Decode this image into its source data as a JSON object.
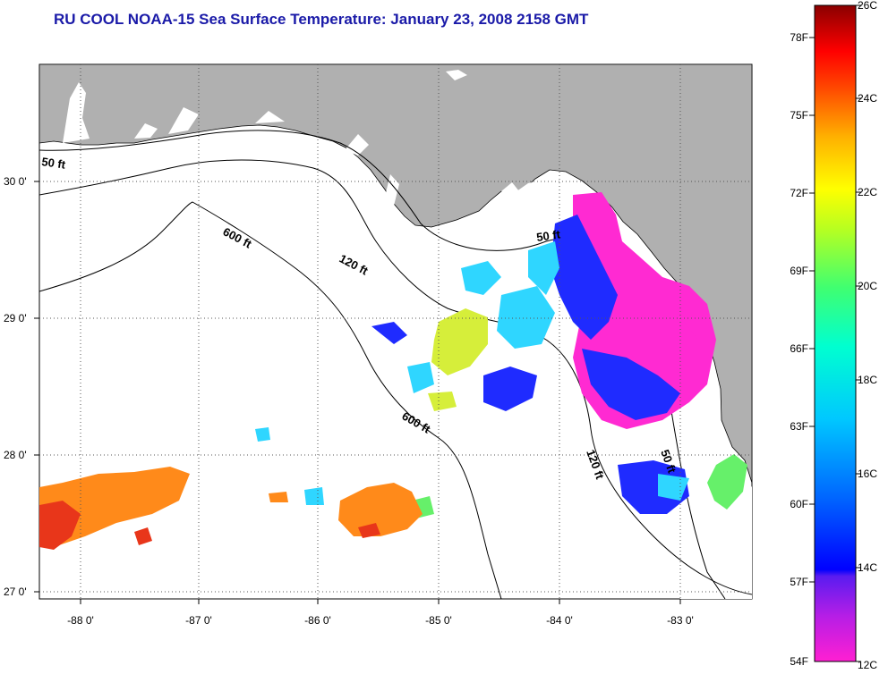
{
  "title": "RU COOL  NOAA-15  Sea Surface Temperature:  January 23, 2008 2158 GMT",
  "colors": {
    "land": "#b0b0b0",
    "water": "#ffffff",
    "title": "#1a1aa8",
    "contour": "#000000"
  },
  "axes": {
    "x_ticks": [
      "-88 0'",
      "-87 0'",
      "-86 0'",
      "-85 0'",
      "-84 0'",
      "-83 0'"
    ],
    "y_ticks": [
      "30 0'",
      "29 0'",
      "28 0'",
      "27 0'"
    ]
  },
  "contours": {
    "shelf50": "50 ft",
    "shelf120": "120 ft",
    "shelf600": "600 ft"
  },
  "colorbar": {
    "scale": "rainbow",
    "celsius": [
      "26C",
      "24C",
      "22C",
      "20C",
      "18C",
      "16C",
      "14C",
      "12C"
    ],
    "fahrenheit": [
      "78F",
      "75F",
      "72F",
      "69F",
      "66F",
      "63F",
      "60F",
      "57F",
      "54F"
    ]
  }
}
